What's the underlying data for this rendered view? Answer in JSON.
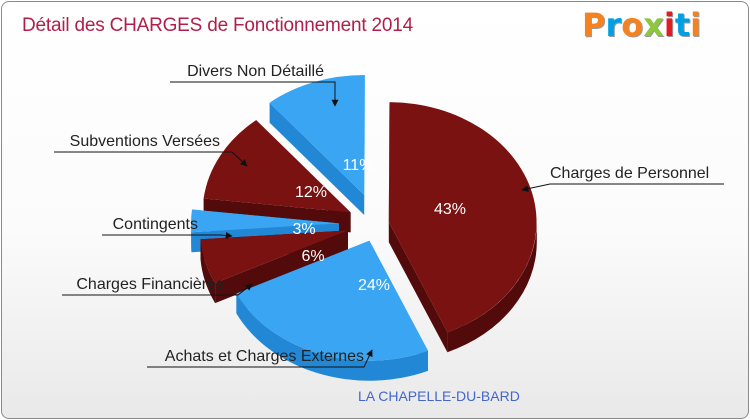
{
  "title": "Détail des CHARGES de Fonctionnement 2014",
  "logo": {
    "text": "Proxiti",
    "colors": [
      "#f58220",
      "#00a0e3",
      "#f58220",
      "#8dc63f",
      "#e31b23",
      "#00a0e3",
      "#f58220"
    ]
  },
  "commune": "LA CHAPELLE-DU-BARD",
  "colors": {
    "blue": "#3aa5f2",
    "blue_side": "#2288d6",
    "red": "#7a1212",
    "red_side": "#520a0a",
    "title": "#b01f4a",
    "commune": "#4466cc"
  },
  "chart_data": {
    "type": "pie",
    "title": "Détail des CHARGES de Fonctionnement 2014",
    "slices": [
      {
        "label": "Charges de Personnel",
        "value": 43,
        "pct_text": "43%",
        "color": "red"
      },
      {
        "label": "Achats et Charges Externes",
        "value": 24,
        "pct_text": "24%",
        "color": "blue"
      },
      {
        "label": "Charges Financières",
        "value": 6,
        "pct_text": "6%",
        "color": "red"
      },
      {
        "label": "Contingents",
        "value": 3,
        "pct_text": "3%",
        "color": "blue"
      },
      {
        "label": "Subventions Versées",
        "value": 12,
        "pct_text": "12%",
        "color": "red"
      },
      {
        "label": "Divers Non Détaillé",
        "value": 11,
        "pct_text": "11%",
        "color": "blue"
      }
    ]
  }
}
